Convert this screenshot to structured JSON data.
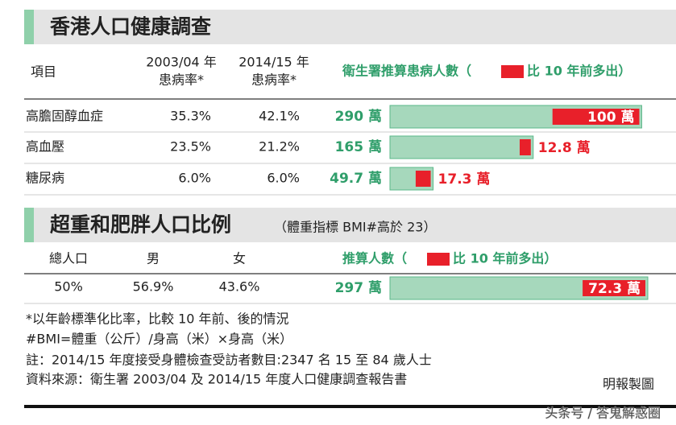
{
  "section1": {
    "title": "香港人口健康調查",
    "headers": {
      "item": "項目",
      "rate_2003": [
        "2003/04 年",
        "患病率*"
      ],
      "rate_2014": [
        "2014/15 年",
        "患病率*"
      ],
      "estimate": "衛生署推算患病人數（",
      "legend": "比 10 年前多出）"
    },
    "rows": [
      {
        "name": "高膽固醇血症",
        "rate_2003": "35.3%",
        "rate_2014": "42.1%",
        "total": {
          "value": 290,
          "label": "290 萬"
        },
        "increase": {
          "value": 100,
          "label": "100 萬"
        }
      },
      {
        "name": "高血壓",
        "rate_2003": "23.5%",
        "rate_2014": "21.2%",
        "total": {
          "value": 165,
          "label": "165 萬"
        },
        "increase": {
          "value": 12.8,
          "label": "12.8 萬"
        }
      },
      {
        "name": "糖尿病",
        "rate_2003": "6.0%",
        "rate_2014": "6.0%",
        "total": {
          "value": 49.7,
          "label": "49.7 萬"
        },
        "increase": {
          "value": 17.3,
          "label": "17.3 萬"
        }
      }
    ]
  },
  "section2": {
    "title": "超重和肥胖人口比例",
    "subtitle": "（體重指標 BMI#高於 23）",
    "headers": {
      "total": "總人口",
      "male": "男",
      "female": "女",
      "estimate": "推算人數（",
      "legend": "比 10 年前多出）"
    },
    "row": {
      "total": "50%",
      "male": "56.9%",
      "female": "43.6%",
      "estimate": {
        "value": 297,
        "label": "297 萬"
      },
      "increase": {
        "value": 72.3,
        "label": "72.3 萬"
      }
    }
  },
  "notes": [
    "*以年齡標準化比率，比較 10 年前、後的情況",
    "#BMI=體重（公斤）/身高（米）×身高（米）",
    "註：2014/15 年度接受身體檢查受訪者數目:2347 名 15 至 84 歲人士",
    "資料來源：衛生署 2003/04 及 2014/15 年度人口健康調查報告書"
  ],
  "credit": "明報製圖",
  "watermark": "头条号 / 答鬼解惑圈"
}
